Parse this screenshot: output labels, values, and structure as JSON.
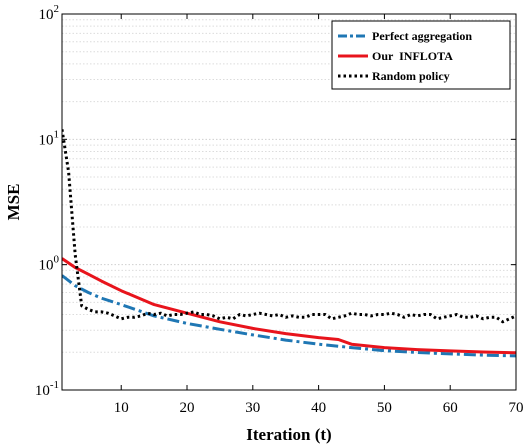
{
  "chart_data": {
    "type": "line",
    "xlabel": "Iteration (t)",
    "ylabel": "MSE",
    "xlim": [
      1,
      70
    ],
    "ylim": [
      0.1,
      100
    ],
    "yscale": "log",
    "grid": "y-major-and-minor",
    "legend_position": "top-right",
    "x_ticks": [
      10,
      20,
      30,
      40,
      50,
      60,
      70
    ],
    "y_ticks": [
      {
        "value": 0.1,
        "base": "10",
        "exp": "-1"
      },
      {
        "value": 1,
        "base": "10",
        "exp": "0"
      },
      {
        "value": 10,
        "base": "10",
        "exp": "1"
      },
      {
        "value": 100,
        "base": "10",
        "exp": "2"
      }
    ],
    "series": [
      {
        "name": "Perfect aggregation",
        "color": "#1f77b4",
        "style": "dashdot",
        "x": [
          1,
          3,
          5,
          7,
          10,
          15,
          20,
          25,
          30,
          35,
          40,
          45,
          50,
          55,
          60,
          65,
          70
        ],
        "y": [
          0.82,
          0.68,
          0.6,
          0.54,
          0.48,
          0.39,
          0.34,
          0.305,
          0.275,
          0.25,
          0.232,
          0.218,
          0.206,
          0.199,
          0.194,
          0.19,
          0.187
        ]
      },
      {
        "name": "Our  INFLOTA",
        "color": "#e8141c",
        "style": "solid",
        "x": [
          1,
          3,
          5,
          7,
          10,
          15,
          20,
          25,
          30,
          35,
          40,
          43,
          45,
          50,
          55,
          60,
          65,
          70
        ],
        "y": [
          1.12,
          0.95,
          0.84,
          0.74,
          0.62,
          0.48,
          0.41,
          0.35,
          0.31,
          0.282,
          0.262,
          0.253,
          0.232,
          0.218,
          0.21,
          0.205,
          0.201,
          0.198
        ]
      },
      {
        "name": "Random policy",
        "color": "#000000",
        "style": "dotted",
        "x": [
          1,
          2,
          3,
          4,
          5,
          6,
          7,
          8,
          9,
          10,
          11,
          12,
          13,
          14,
          15,
          16,
          17,
          18,
          19,
          20,
          21,
          22,
          23,
          24,
          25,
          26,
          27,
          28,
          29,
          30,
          31,
          32,
          33,
          34,
          35,
          36,
          37,
          38,
          39,
          40,
          41,
          42,
          43,
          44,
          45,
          46,
          47,
          48,
          49,
          50,
          51,
          52,
          53,
          54,
          55,
          56,
          57,
          58,
          59,
          60,
          61,
          62,
          63,
          64,
          65,
          66,
          67,
          68,
          69,
          70
        ],
        "y": [
          12,
          5.5,
          1.2,
          0.47,
          0.44,
          0.42,
          0.42,
          0.41,
          0.39,
          0.37,
          0.38,
          0.38,
          0.39,
          0.41,
          0.4,
          0.41,
          0.39,
          0.4,
          0.4,
          0.41,
          0.42,
          0.4,
          0.4,
          0.39,
          0.37,
          0.38,
          0.37,
          0.4,
          0.39,
          0.4,
          0.41,
          0.4,
          0.39,
          0.4,
          0.38,
          0.39,
          0.38,
          0.38,
          0.4,
          0.4,
          0.4,
          0.37,
          0.38,
          0.39,
          0.41,
          0.4,
          0.4,
          0.39,
          0.4,
          0.4,
          0.41,
          0.4,
          0.38,
          0.4,
          0.39,
          0.4,
          0.4,
          0.37,
          0.38,
          0.39,
          0.4,
          0.38,
          0.38,
          0.39,
          0.37,
          0.38,
          0.38,
          0.35,
          0.37,
          0.39
        ]
      }
    ]
  }
}
